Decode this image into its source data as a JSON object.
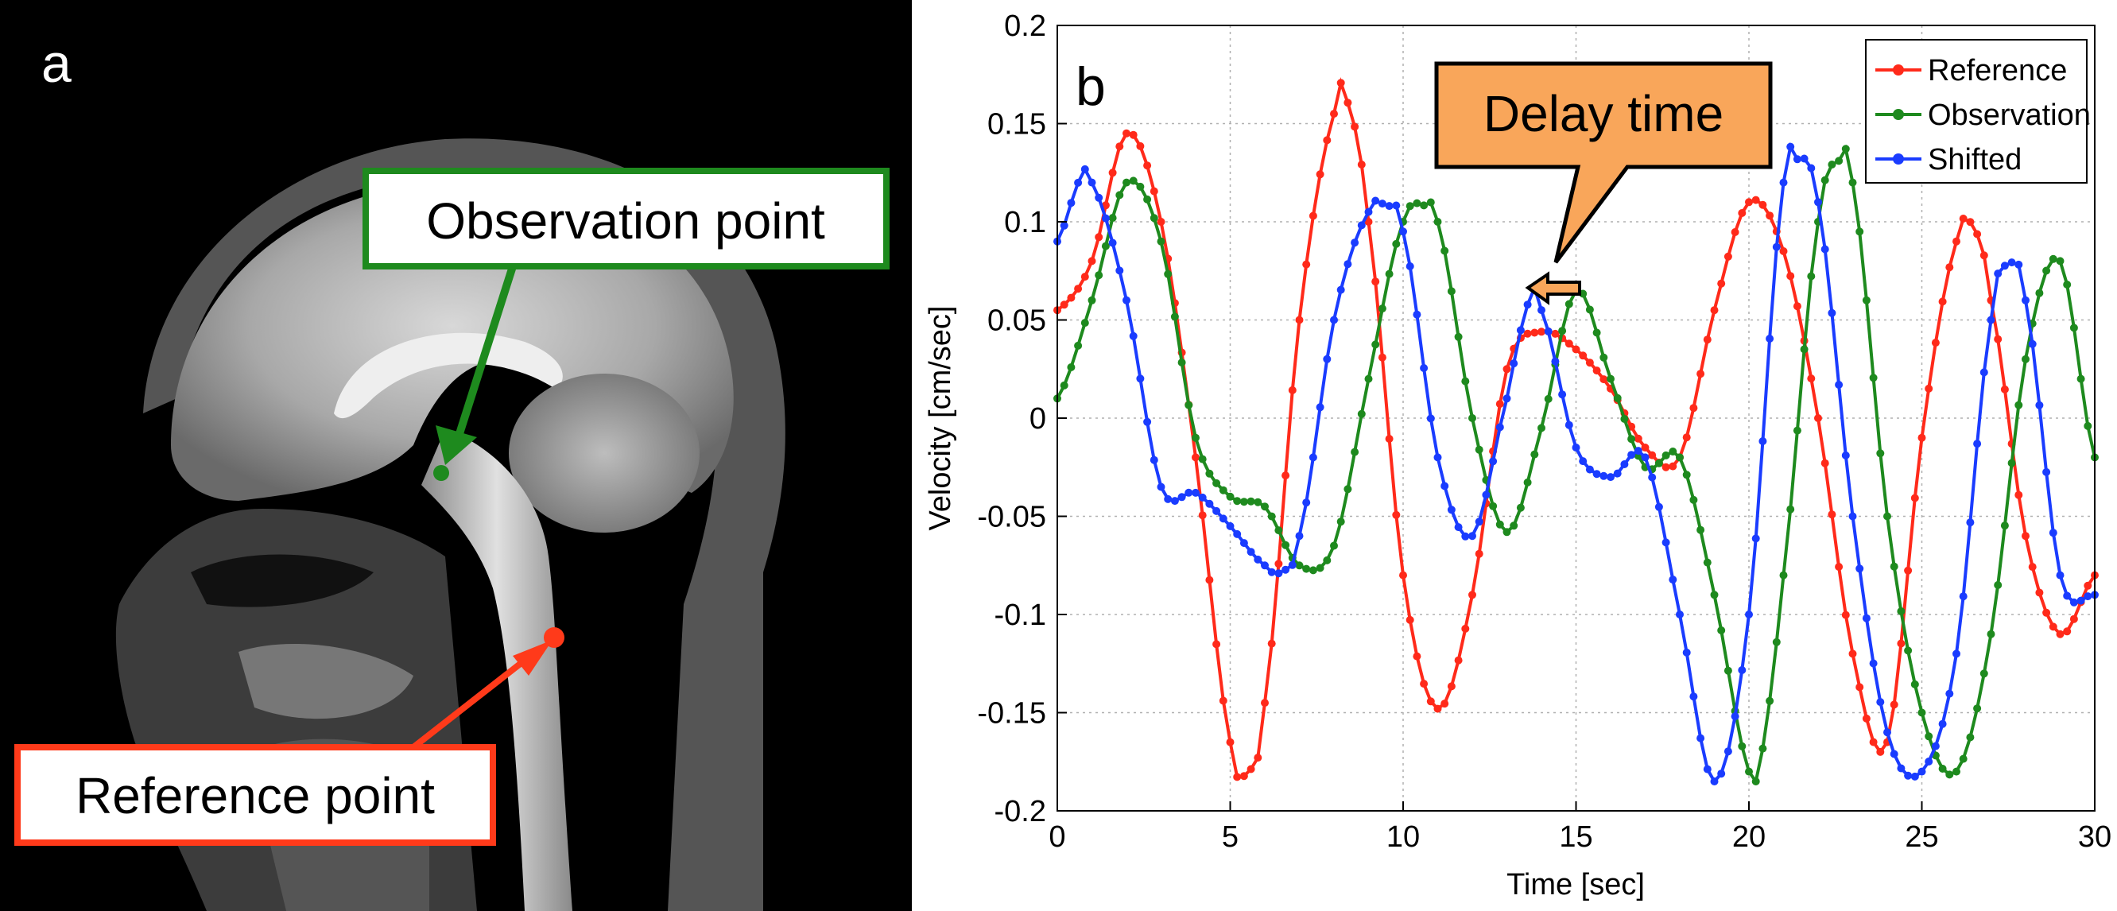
{
  "panel_a": {
    "label": "a",
    "observation_label": "Observation point",
    "reference_label": "Reference point",
    "colors": {
      "observation": "#1e8a1e",
      "reference": "#ff3a1a",
      "background": "#000000"
    }
  },
  "chart_data": {
    "type": "line",
    "panel_label": "b",
    "title": "",
    "xlabel": "Time [sec]",
    "ylabel": "Velocity [cm/sec]",
    "xlim": [
      0,
      30
    ],
    "ylim": [
      -0.2,
      0.2
    ],
    "xticks": [
      0,
      5,
      10,
      15,
      20,
      25,
      30
    ],
    "xtick_labels": [
      "0",
      "5",
      "10",
      "15",
      "20",
      "25",
      "30"
    ],
    "yticks": [
      -0.2,
      -0.15,
      -0.1,
      -0.05,
      0,
      0.05,
      0.1,
      0.15,
      0.2
    ],
    "ytick_labels": [
      "-0.2",
      "-0.15",
      "-0.1",
      "-0.05",
      "0",
      "0.05",
      "0.1",
      "0.15",
      "0.2"
    ],
    "grid": true,
    "legend_position": "top-right",
    "annotation": {
      "text": "Delay time",
      "color": "#f9a65a"
    },
    "series": [
      {
        "name": "Reference",
        "color": "#ff2a1a",
        "x": [
          0,
          1,
          2,
          3,
          4,
          5,
          5.5,
          6,
          7,
          8,
          8.3,
          9,
          10,
          11,
          12,
          13,
          14,
          15,
          16,
          17,
          18,
          19,
          20,
          21,
          22,
          23,
          24,
          25,
          26,
          26.5,
          27,
          28,
          29,
          30
        ],
        "y": [
          0.055,
          0.08,
          0.145,
          0.1,
          -0.02,
          -0.165,
          -0.18,
          -0.145,
          0.05,
          0.155,
          0.165,
          0.1,
          -0.08,
          -0.148,
          -0.09,
          0.025,
          0.044,
          0.035,
          0.015,
          -0.015,
          -0.02,
          0.055,
          0.11,
          0.085,
          0.0,
          -0.12,
          -0.165,
          -0.01,
          0.09,
          0.097,
          0.06,
          -0.06,
          -0.11,
          -0.08
        ]
      },
      {
        "name": "Observation",
        "color": "#1e8a1e",
        "x": [
          0,
          1,
          2,
          3,
          4,
          5,
          6,
          7,
          8,
          9,
          10,
          10.7,
          11,
          12,
          13,
          14,
          15,
          16,
          17,
          18,
          19,
          20,
          20.2,
          21,
          22,
          22.7,
          23,
          24,
          25,
          26,
          27,
          28,
          29,
          30
        ],
        "y": [
          0.01,
          0.06,
          0.12,
          0.09,
          -0.01,
          -0.04,
          -0.045,
          -0.075,
          -0.065,
          0.02,
          0.1,
          0.108,
          0.1,
          0.0,
          -0.058,
          -0.005,
          0.065,
          0.02,
          -0.025,
          -0.02,
          -0.09,
          -0.18,
          -0.185,
          -0.08,
          0.1,
          0.132,
          0.12,
          -0.05,
          -0.15,
          -0.18,
          -0.11,
          0.03,
          0.08,
          -0.02
        ]
      },
      {
        "name": "Shifted",
        "color": "#1a3cff",
        "x": [
          0,
          0.7,
          1,
          2,
          3,
          4,
          5,
          6,
          6.5,
          7,
          8,
          9,
          9.5,
          10,
          11,
          12,
          13,
          13.7,
          14,
          15,
          16,
          17,
          18,
          19,
          20,
          21,
          21.3,
          22,
          23,
          24,
          25,
          26,
          27,
          27.5,
          28,
          29,
          30
        ],
        "y": [
          0.09,
          0.123,
          0.12,
          0.06,
          -0.035,
          -0.038,
          -0.055,
          -0.075,
          -0.078,
          -0.06,
          0.05,
          0.105,
          0.108,
          0.095,
          -0.02,
          -0.06,
          0.01,
          0.062,
          0.055,
          -0.015,
          -0.03,
          -0.02,
          -0.1,
          -0.185,
          -0.1,
          0.12,
          0.132,
          0.11,
          -0.05,
          -0.16,
          -0.18,
          -0.12,
          0.05,
          0.078,
          0.06,
          -0.08,
          -0.09
        ]
      }
    ]
  }
}
